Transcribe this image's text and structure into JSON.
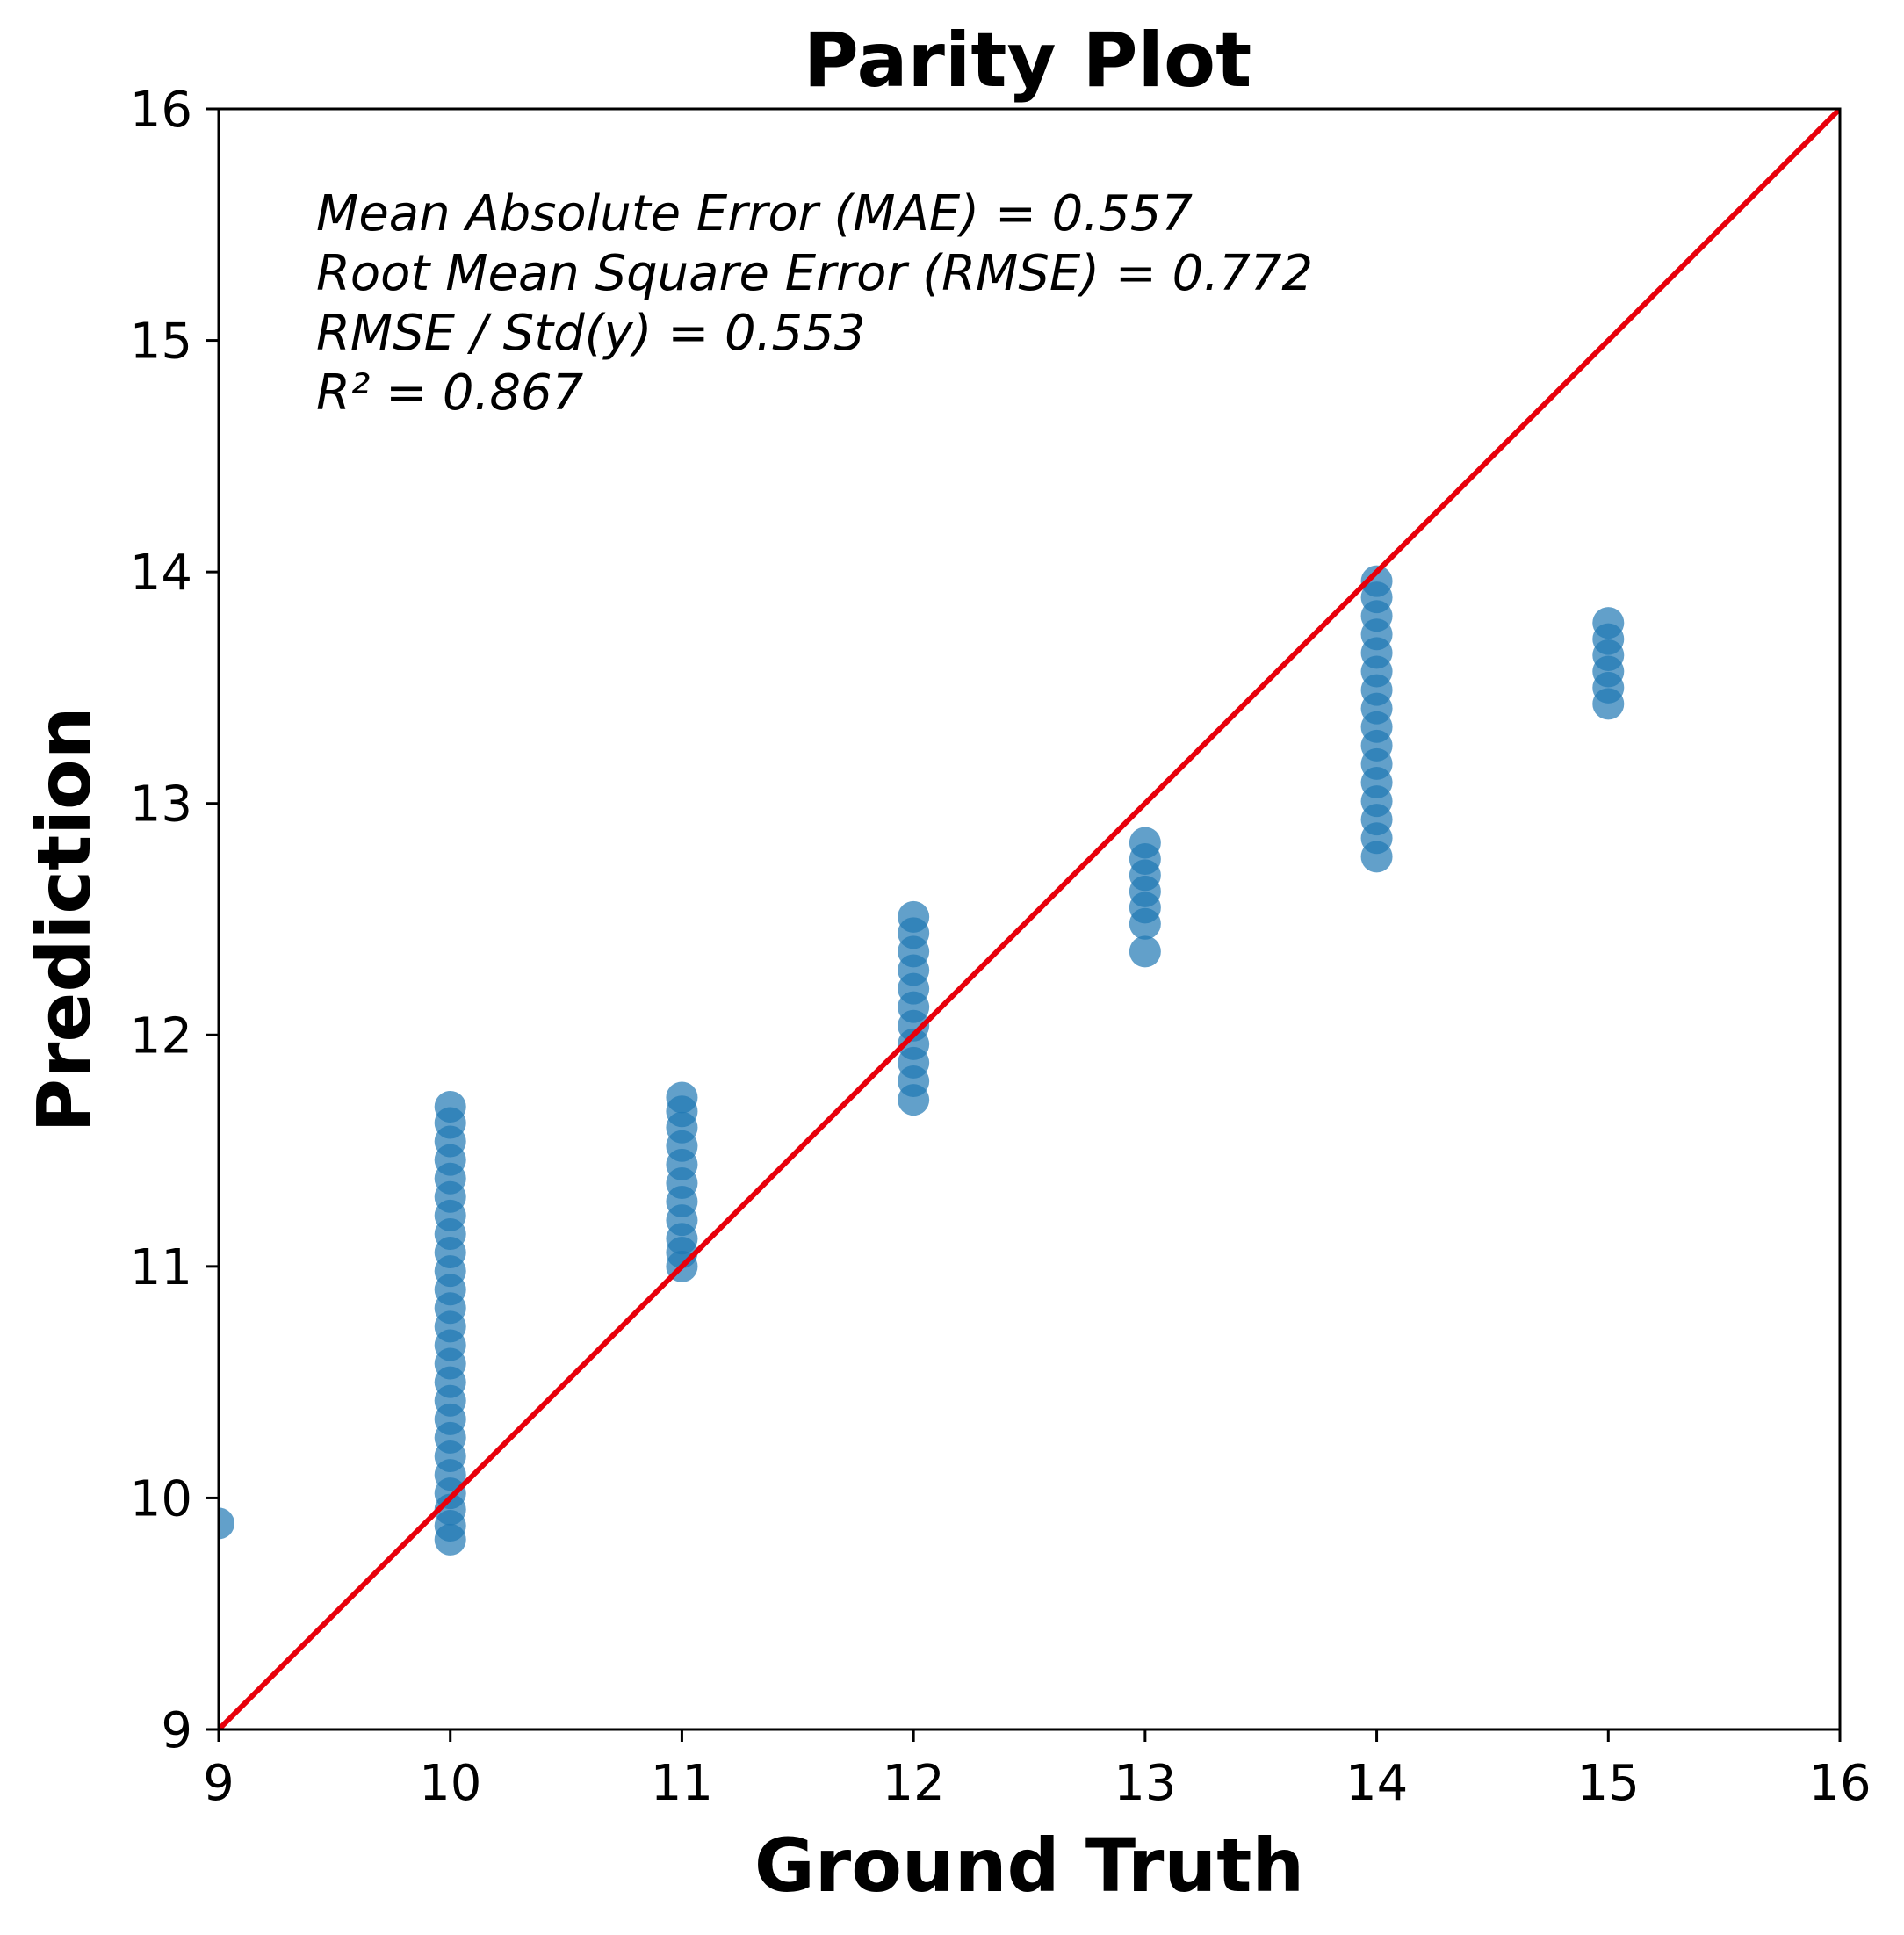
{
  "chart_data": {
    "type": "scatter",
    "title": "Parity Plot",
    "xlabel": "Ground Truth",
    "ylabel": "Prediction",
    "xlim": [
      9,
      16
    ],
    "ylim": [
      9,
      16
    ],
    "xticks": [
      "9",
      "10",
      "11",
      "12",
      "13",
      "14",
      "15",
      "16"
    ],
    "yticks": [
      "9",
      "10",
      "11",
      "12",
      "13",
      "14",
      "15",
      "16"
    ],
    "grid": false,
    "legend": "none",
    "colors": {
      "points": "#1f77b4",
      "parity_line": "#e8000b",
      "frame": "#000000"
    },
    "parity_line": {
      "x": [
        9,
        16
      ],
      "y": [
        9,
        16
      ]
    },
    "annotations": [
      "Mean Absolute Error (MAE) = 0.557",
      "Root Mean Square Error (RMSE) = 0.772",
      "RMSE / Std(y) = 0.553",
      "R² = 0.867"
    ],
    "series": [
      {
        "points": [
          [
            9,
            9.89
          ],
          [
            10,
            9.82
          ],
          [
            10,
            9.88
          ],
          [
            10,
            9.95
          ],
          [
            10,
            10.02
          ],
          [
            10,
            10.1
          ],
          [
            10,
            10.18
          ],
          [
            10,
            10.26
          ],
          [
            10,
            10.34
          ],
          [
            10,
            10.42
          ],
          [
            10,
            10.5
          ],
          [
            10,
            10.58
          ],
          [
            10,
            10.66
          ],
          [
            10,
            10.74
          ],
          [
            10,
            10.82
          ],
          [
            10,
            10.9
          ],
          [
            10,
            10.98
          ],
          [
            10,
            11.06
          ],
          [
            10,
            11.14
          ],
          [
            10,
            11.22
          ],
          [
            10,
            11.3
          ],
          [
            10,
            11.38
          ],
          [
            10,
            11.46
          ],
          [
            10,
            11.54
          ],
          [
            10,
            11.62
          ],
          [
            10,
            11.69
          ],
          [
            11,
            11.0
          ],
          [
            11,
            11.06
          ],
          [
            11,
            11.12
          ],
          [
            11,
            11.2
          ],
          [
            11,
            11.28
          ],
          [
            11,
            11.36
          ],
          [
            11,
            11.44
          ],
          [
            11,
            11.52
          ],
          [
            11,
            11.6
          ],
          [
            11,
            11.67
          ],
          [
            11,
            11.73
          ],
          [
            12,
            11.72
          ],
          [
            12,
            11.8
          ],
          [
            12,
            11.88
          ],
          [
            12,
            11.96
          ],
          [
            12,
            12.04
          ],
          [
            12,
            12.12
          ],
          [
            12,
            12.2
          ],
          [
            12,
            12.28
          ],
          [
            12,
            12.36
          ],
          [
            12,
            12.44
          ],
          [
            12,
            12.51
          ],
          [
            13,
            12.36
          ],
          [
            13,
            12.48
          ],
          [
            13,
            12.55
          ],
          [
            13,
            12.62
          ],
          [
            13,
            12.69
          ],
          [
            13,
            12.76
          ],
          [
            13,
            12.83
          ],
          [
            14,
            12.77
          ],
          [
            14,
            12.85
          ],
          [
            14,
            12.93
          ],
          [
            14,
            13.01
          ],
          [
            14,
            13.09
          ],
          [
            14,
            13.17
          ],
          [
            14,
            13.25
          ],
          [
            14,
            13.33
          ],
          [
            14,
            13.41
          ],
          [
            14,
            13.49
          ],
          [
            14,
            13.57
          ],
          [
            14,
            13.65
          ],
          [
            14,
            13.73
          ],
          [
            14,
            13.81
          ],
          [
            14,
            13.89
          ],
          [
            14,
            13.96
          ],
          [
            15,
            13.43
          ],
          [
            15,
            13.5
          ],
          [
            15,
            13.57
          ],
          [
            15,
            13.64
          ],
          [
            15,
            13.71
          ],
          [
            15,
            13.78
          ]
        ]
      }
    ]
  }
}
